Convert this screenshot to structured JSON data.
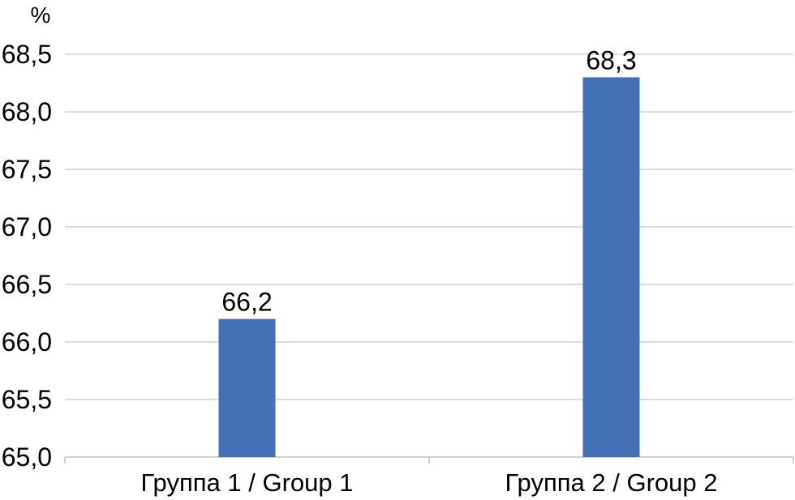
{
  "chart_data": {
    "type": "bar",
    "unit_label": "%",
    "categories": [
      "Группа 1 / Group 1",
      "Группа 2 / Group 2"
    ],
    "values": [
      66.2,
      68.3
    ],
    "data_labels": [
      "66,2",
      "68,3"
    ],
    "ylim": [
      65.0,
      68.5
    ],
    "y_ticks": [
      65.0,
      65.5,
      66.0,
      66.5,
      67.0,
      67.5,
      68.0,
      68.5
    ],
    "y_tick_labels": [
      "65,0",
      "65,5",
      "66,0",
      "66,5",
      "67,0",
      "67,5",
      "68,0",
      "68,5"
    ],
    "grid": true,
    "bar_color": "#4470b6"
  }
}
